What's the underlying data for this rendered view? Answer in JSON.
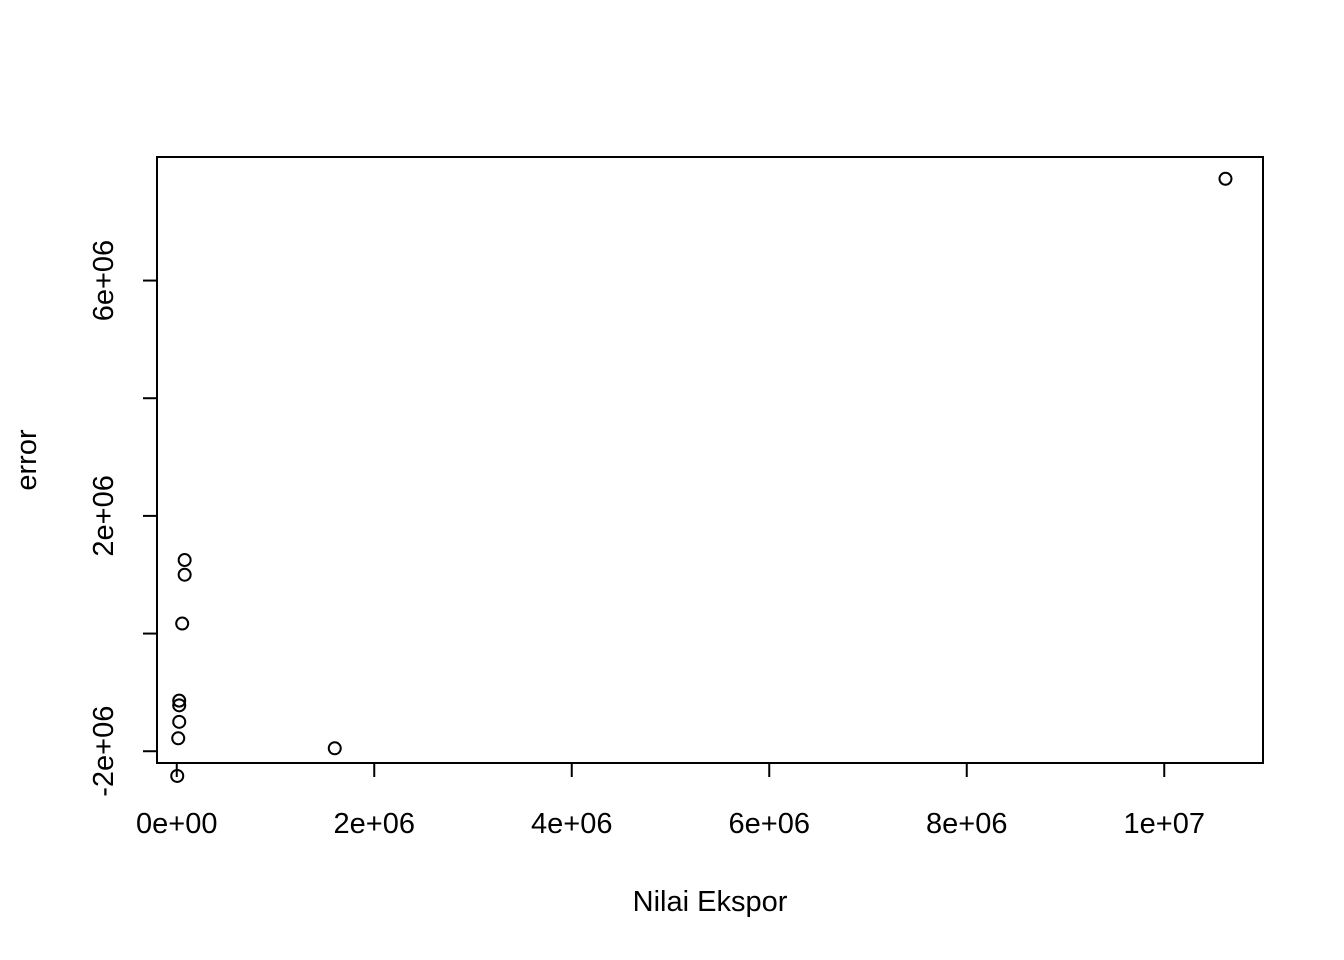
{
  "chart_data": {
    "type": "scatter",
    "title": "",
    "xlabel": "Nilai Ekspor",
    "ylabel": "error",
    "xlim": [
      -200000,
      11000000
    ],
    "ylim": [
      -2200000,
      8100000
    ],
    "x_ticks": [
      {
        "value": 0,
        "label": "0e+00"
      },
      {
        "value": 2000000,
        "label": "2e+06"
      },
      {
        "value": 4000000,
        "label": "4e+06"
      },
      {
        "value": 6000000,
        "label": "6e+06"
      },
      {
        "value": 8000000,
        "label": "8e+06"
      },
      {
        "value": 10000000,
        "label": "1e+07"
      }
    ],
    "y_ticks": [
      {
        "value": -2000000,
        "label": "-2e+06"
      },
      {
        "value": 0,
        "label": ""
      },
      {
        "value": 2000000,
        "label": "2e+06"
      },
      {
        "value": 4000000,
        "label": ""
      },
      {
        "value": 6000000,
        "label": "6e+06"
      }
    ],
    "grid": false,
    "points": [
      {
        "x": 10620000,
        "y": 7730000
      },
      {
        "x": 80000,
        "y": 1250000
      },
      {
        "x": 80000,
        "y": 1000000
      },
      {
        "x": 55000,
        "y": 170000
      },
      {
        "x": 25000,
        "y": -1140000
      },
      {
        "x": 25000,
        "y": -1220000
      },
      {
        "x": 25000,
        "y": -1500000
      },
      {
        "x": 15000,
        "y": -1780000
      },
      {
        "x": 5000,
        "y": -2420000
      },
      {
        "x": 1600000,
        "y": -1950000
      }
    ]
  }
}
